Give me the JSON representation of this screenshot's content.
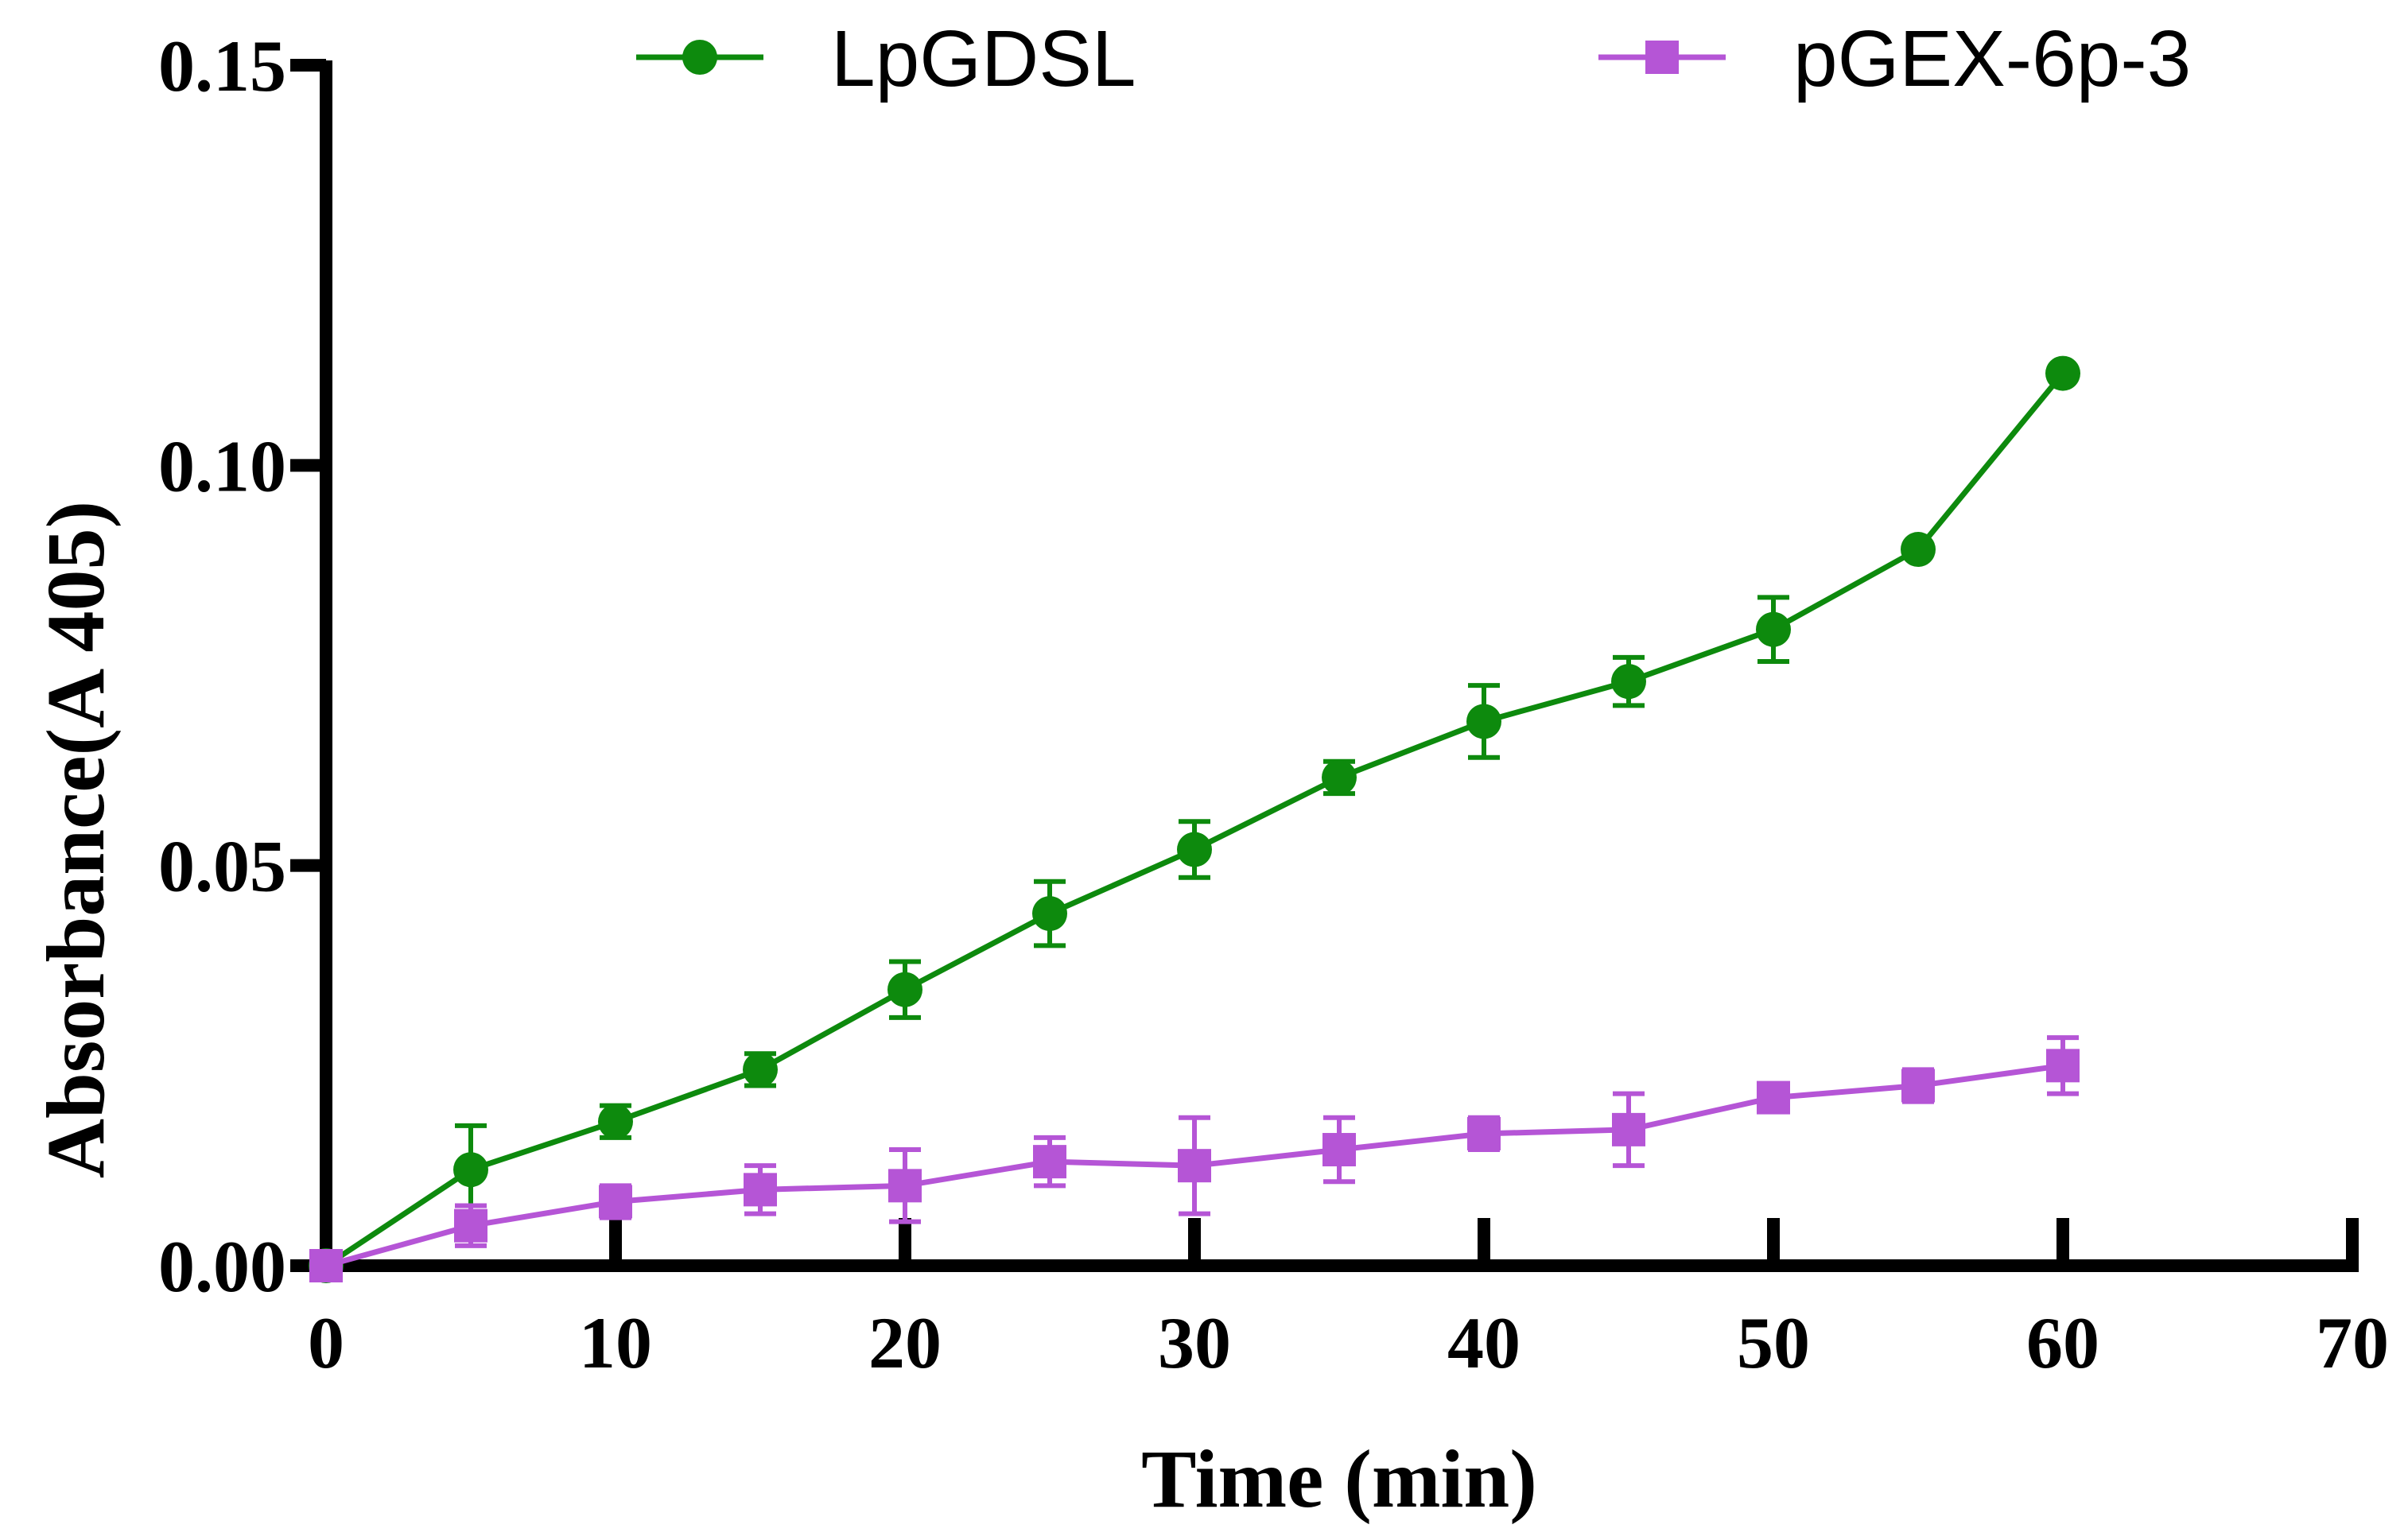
{
  "chart_data": {
    "type": "line",
    "title": "",
    "xlabel": "Time (min)",
    "ylabel": "Absorbance(A 405)",
    "xlim": [
      0,
      70
    ],
    "ylim": [
      0,
      0.15
    ],
    "xticks": [
      0,
      10,
      20,
      30,
      40,
      50,
      60,
      70
    ],
    "yticks": [
      0.0,
      0.05,
      0.1,
      0.15
    ],
    "xtick_labels": [
      "0",
      "10",
      "20",
      "30",
      "40",
      "50",
      "60",
      "70"
    ],
    "ytick_labels": [
      "0.00",
      "0.05",
      "0.10",
      "0.15"
    ],
    "legend_position": "top",
    "grid": false,
    "series": [
      {
        "name": "LpGDSL",
        "color": "#0d8a0d",
        "marker": "circle",
        "x": [
          0,
          5,
          10,
          15,
          20,
          25,
          30,
          35,
          40,
          45,
          50,
          55,
          60
        ],
        "values": [
          0.0,
          0.012,
          0.018,
          0.0245,
          0.0345,
          0.044,
          0.052,
          0.061,
          0.068,
          0.073,
          0.0795,
          0.0895,
          0.1115
        ],
        "errors": [
          0.0,
          0.0055,
          0.002,
          0.002,
          0.0035,
          0.004,
          0.0035,
          0.002,
          0.0045,
          0.003,
          0.004,
          0.0,
          0.0
        ]
      },
      {
        "name": "pGEX-6p-3",
        "color": "#b555d6",
        "marker": "square",
        "x": [
          0,
          5,
          10,
          15,
          20,
          25,
          30,
          35,
          40,
          45,
          50,
          55,
          60
        ],
        "values": [
          0.0,
          0.005,
          0.008,
          0.0095,
          0.01,
          0.013,
          0.0125,
          0.0145,
          0.0165,
          0.017,
          0.021,
          0.0225,
          0.025
        ],
        "errors": [
          0.0,
          0.0025,
          0.002,
          0.003,
          0.0045,
          0.003,
          0.006,
          0.004,
          0.002,
          0.0045,
          0.0015,
          0.002,
          0.0035
        ]
      }
    ]
  }
}
